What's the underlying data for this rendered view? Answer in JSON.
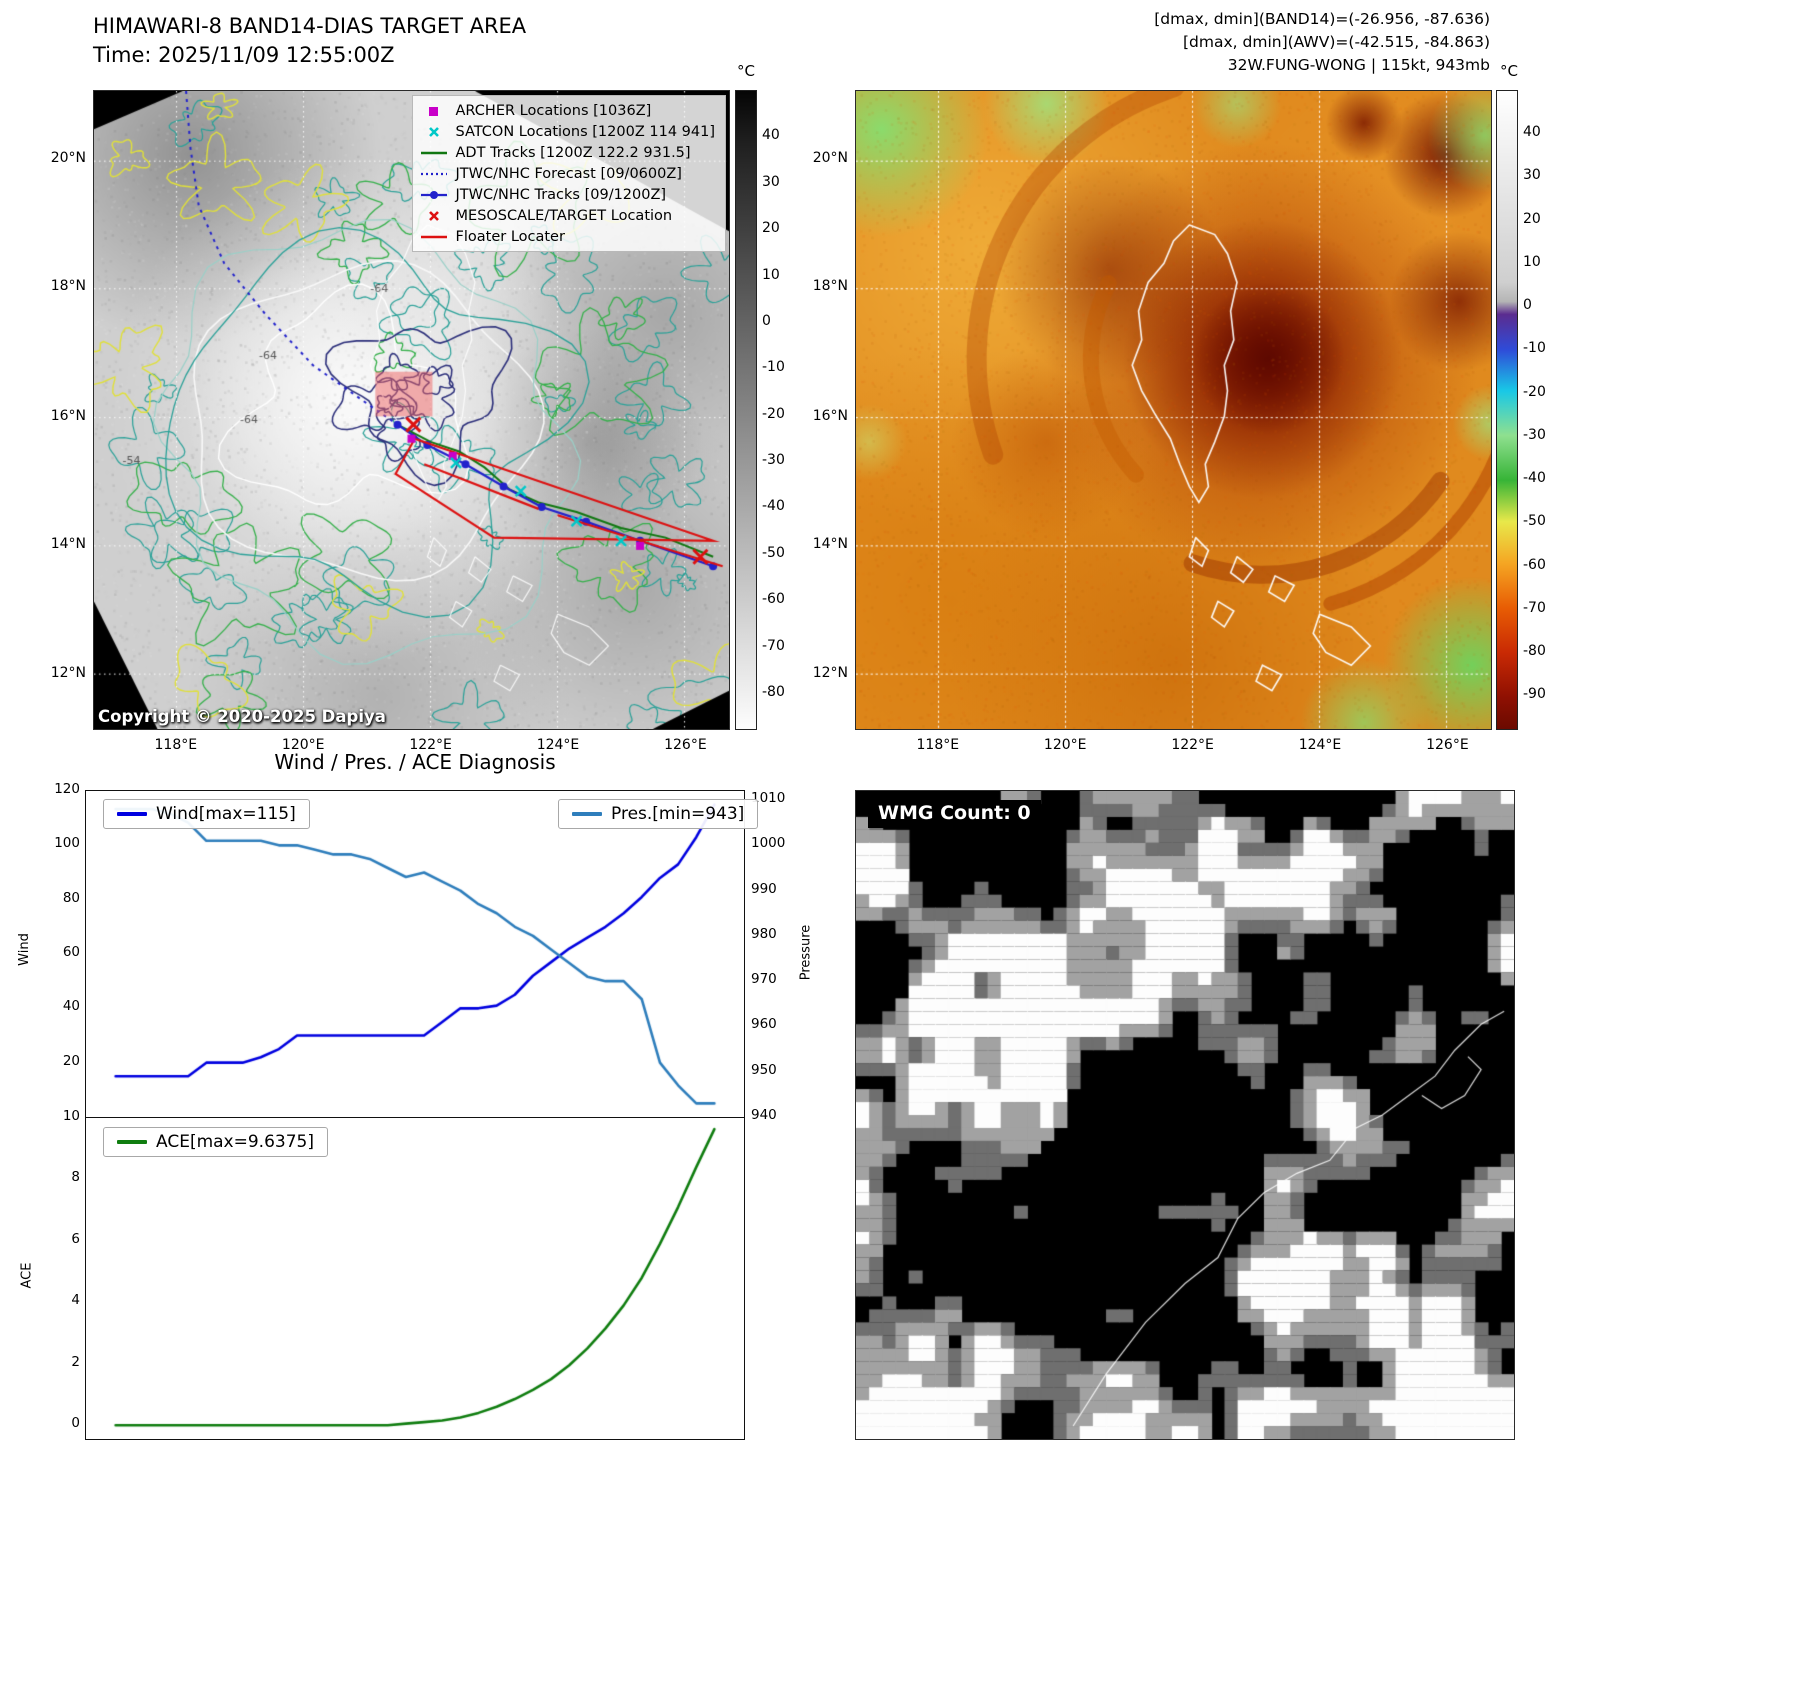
{
  "band14_panel": {
    "title": "HIMAWARI-8 BAND14-DIAS TARGET AREA",
    "subtitle": "Time: 2025/11/09 12:55:00Z",
    "copyright": "Copyright © 2020-2025 Dapiya",
    "legend_items": [
      {
        "label": "ARCHER Locations [1036Z]",
        "marker": "square",
        "color": "#c800c8"
      },
      {
        "label": "SATCON Locations [1200Z 114 941]",
        "marker": "x",
        "color": "#00c8c8"
      },
      {
        "label": "ADT Tracks [1200Z 122.2 931.5]",
        "marker": "line",
        "color": "#117711"
      },
      {
        "label": "JTWC/NHC Forecast [09/0600Z]",
        "marker": "dotted-line",
        "color": "#2222cc"
      },
      {
        "label": "JTWC/NHC Tracks [09/1200Z]",
        "marker": "line-dot",
        "color": "#2222cc"
      },
      {
        "label": "MESOSCALE/TARGET Location",
        "marker": "x",
        "color": "#dd1111"
      },
      {
        "label": "Floater Locater",
        "marker": "line",
        "color": "#dd1111"
      }
    ],
    "contour_labels": [
      "-64",
      "-64",
      "-54",
      "-64"
    ],
    "colorbar_unit": "°C",
    "colorbar_ticks": [
      40,
      30,
      20,
      10,
      0,
      -10,
      -20,
      -30,
      -40,
      -50,
      -60,
      -70,
      -80
    ],
    "lat_ticks": [
      "20°N",
      "18°N",
      "16°N",
      "14°N",
      "12°N"
    ],
    "lon_ticks": [
      "118°E",
      "120°E",
      "122°E",
      "124°E",
      "126°E"
    ]
  },
  "awv_panel": {
    "header_lines": [
      "[dmax, dmin](BAND14)=(-26.956, -87.636)",
      "[dmax, dmin](AWV)=(-42.515, -84.863)",
      "32W.FUNG-WONG | 115kt, 943mb"
    ],
    "colorbar_unit": "°C",
    "colorbar_ticks": [
      40,
      30,
      20,
      10,
      0,
      -10,
      -20,
      -30,
      -40,
      -50,
      -60,
      -70,
      -80,
      -90
    ],
    "lat_ticks": [
      "20°N",
      "18°N",
      "16°N",
      "14°N",
      "12°N"
    ],
    "lon_ticks": [
      "118°E",
      "120°E",
      "122°E",
      "124°E",
      "126°E"
    ]
  },
  "wmg_panel": {
    "badge": "WMG Count: 0"
  },
  "chart_data": [
    {
      "type": "line",
      "title": "Wind / Pres. / ACE Diagnosis",
      "subplot": "wind_pressure",
      "x_unit": "time-step",
      "ylabel_left": "Wind",
      "ylabel_right": "Pressure",
      "ylim_left": [
        0,
        120
      ],
      "ylim_right": [
        940,
        1012
      ],
      "yticks_left": [
        20,
        40,
        60,
        80,
        100,
        120
      ],
      "yticks_right": [
        940,
        950,
        960,
        970,
        980,
        990,
        1000,
        1010
      ],
      "grid": false,
      "legend_positions": [
        "upper-left",
        "upper-right"
      ],
      "series": [
        {
          "name": "Wind[max=115]",
          "axis": "left",
          "color": "#0000e0",
          "max": 115,
          "values": [
            15,
            15,
            15,
            15,
            15,
            20,
            20,
            20,
            22,
            25,
            30,
            30,
            30,
            30,
            30,
            30,
            30,
            30,
            35,
            40,
            40,
            41,
            45,
            52,
            57,
            62,
            66,
            70,
            75,
            81,
            88,
            93,
            103,
            115
          ]
        },
        {
          "name": "Pres.[min=943]",
          "axis": "right",
          "color": "#2e7ebc",
          "min": 943,
          "values": [
            1008,
            1008,
            1008,
            1007,
            1005,
            1001,
            1001,
            1001,
            1001,
            1000,
            1000,
            999,
            998,
            998,
            997,
            995,
            993,
            994,
            992,
            990,
            987,
            985,
            982,
            980,
            977,
            974,
            971,
            970,
            970,
            966,
            952,
            947,
            943,
            943
          ]
        }
      ]
    },
    {
      "type": "line",
      "subplot": "ace",
      "ylabel": "ACE",
      "ylim": [
        -0.45,
        10
      ],
      "yticks": [
        0,
        2,
        4,
        6,
        8,
        10
      ],
      "grid": false,
      "legend_positions": [
        "upper-left"
      ],
      "series": [
        {
          "name": "ACE[max=9.6375]",
          "color": "#0f7d0f",
          "max": 9.6375,
          "values": [
            0,
            0,
            0,
            0,
            0,
            0,
            0,
            0,
            0,
            0,
            0,
            0,
            0,
            0,
            0,
            0,
            0.05,
            0.1,
            0.15,
            0.25,
            0.4,
            0.6,
            0.85,
            1.15,
            1.5,
            1.95,
            2.5,
            3.15,
            3.9,
            4.8,
            5.9,
            7.1,
            8.4,
            9.6375
          ]
        }
      ]
    }
  ]
}
